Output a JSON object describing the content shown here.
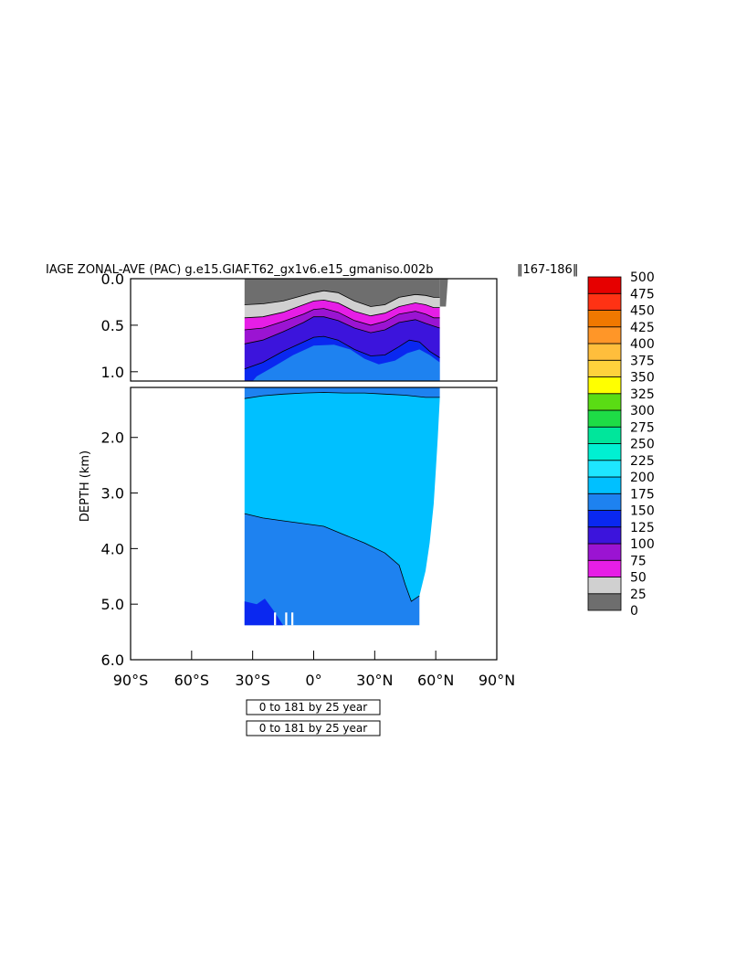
{
  "chart_data": {
    "type": "heatmap",
    "title": "IAGE ZONAL-AVE (PAC) g.e15.GIAF.T62_gx1v6.e15_gmaniso.002b",
    "title_years": "‖167-186‖",
    "ylabel": "DEPTH (km)",
    "xlabel": "",
    "x_ticks": [
      "90°S",
      "60°S",
      "30°S",
      "0°",
      "30°N",
      "60°N",
      "90°N"
    ],
    "x_tick_values": [
      -90,
      -60,
      -30,
      0,
      30,
      60,
      90
    ],
    "xlim": [
      -90,
      90
    ],
    "upper_panel": {
      "ylim": [
        0,
        1.1
      ],
      "y_ticks": [
        "0.0",
        "0.5",
        "1.0"
      ],
      "y_tick_values": [
        0,
        0.5,
        1.0
      ]
    },
    "lower_panel": {
      "ylim": [
        1.1,
        6.0
      ],
      "y_ticks": [
        "2.0",
        "3.0",
        "4.0",
        "5.0",
        "6.0"
      ],
      "y_tick_values": [
        2,
        3,
        4,
        5,
        6
      ]
    },
    "colorbar": {
      "levels": [
        0,
        25,
        50,
        75,
        100,
        125,
        150,
        175,
        200,
        225,
        250,
        275,
        300,
        325,
        350,
        375,
        400,
        425,
        450,
        475,
        500
      ],
      "labels": [
        "0",
        "25",
        "50",
        "75",
        "100",
        "125",
        "150",
        "175",
        "200",
        "225",
        "250",
        "275",
        "300",
        "325",
        "350",
        "375",
        "400",
        "425",
        "450",
        "475",
        "500"
      ],
      "colors": [
        "#6e6e6e",
        "#d0d0d0",
        "#e61ee6",
        "#9b14d2",
        "#3c14dc",
        "#0a28f0",
        "#1e82f0",
        "#00c0ff",
        "#1ee6ff",
        "#00f0d2",
        "#00e69b",
        "#1edc46",
        "#5adc14",
        "#ffff00",
        "#ffd23c",
        "#ffbe3c",
        "#ff9628",
        "#f07800",
        "#ff3214",
        "#e60000"
      ]
    },
    "contours": [
      {
        "level": 25,
        "points": [
          [
            -34,
            0.28
          ],
          [
            -25,
            0.27
          ],
          [
            -15,
            0.24
          ],
          [
            -5,
            0.18
          ],
          [
            0,
            0.15
          ],
          [
            5,
            0.13
          ],
          [
            12,
            0.15
          ],
          [
            20,
            0.24
          ],
          [
            28,
            0.3
          ],
          [
            35,
            0.28
          ],
          [
            42,
            0.2
          ],
          [
            50,
            0.17
          ],
          [
            55,
            0.18
          ],
          [
            59,
            0.2
          ],
          [
            62,
            0.2
          ]
        ]
      },
      {
        "level": 50,
        "points": [
          [
            -34,
            0.42
          ],
          [
            -25,
            0.41
          ],
          [
            -15,
            0.36
          ],
          [
            -5,
            0.28
          ],
          [
            0,
            0.24
          ],
          [
            5,
            0.23
          ],
          [
            12,
            0.26
          ],
          [
            20,
            0.35
          ],
          [
            28,
            0.4
          ],
          [
            35,
            0.37
          ],
          [
            42,
            0.3
          ],
          [
            50,
            0.26
          ],
          [
            55,
            0.28
          ],
          [
            59,
            0.31
          ],
          [
            62,
            0.31
          ]
        ]
      },
      {
        "level": 75,
        "points": [
          [
            -34,
            0.55
          ],
          [
            -25,
            0.53
          ],
          [
            -15,
            0.46
          ],
          [
            -5,
            0.38
          ],
          [
            0,
            0.33
          ],
          [
            5,
            0.32
          ],
          [
            12,
            0.36
          ],
          [
            20,
            0.45
          ],
          [
            28,
            0.5
          ],
          [
            35,
            0.46
          ],
          [
            42,
            0.38
          ],
          [
            50,
            0.35
          ],
          [
            55,
            0.38
          ],
          [
            59,
            0.42
          ],
          [
            62,
            0.42
          ]
        ]
      },
      {
        "level": 100,
        "points": [
          [
            -34,
            0.7
          ],
          [
            -25,
            0.66
          ],
          [
            -15,
            0.57
          ],
          [
            -5,
            0.47
          ],
          [
            0,
            0.41
          ],
          [
            5,
            0.41
          ],
          [
            12,
            0.45
          ],
          [
            20,
            0.53
          ],
          [
            28,
            0.58
          ],
          [
            35,
            0.55
          ],
          [
            42,
            0.47
          ],
          [
            50,
            0.44
          ],
          [
            55,
            0.48
          ],
          [
            59,
            0.51
          ],
          [
            62,
            0.53
          ]
        ]
      },
      {
        "level": 125,
        "points": [
          [
            -34,
            0.97
          ],
          [
            -25,
            0.9
          ],
          [
            -15,
            0.78
          ],
          [
            -5,
            0.68
          ],
          [
            0,
            0.63
          ],
          [
            5,
            0.62
          ],
          [
            12,
            0.66
          ],
          [
            20,
            0.76
          ],
          [
            28,
            0.83
          ],
          [
            35,
            0.82
          ],
          [
            42,
            0.73
          ],
          [
            47,
            0.66
          ],
          [
            52,
            0.68
          ],
          [
            57,
            0.78
          ],
          [
            62,
            0.85
          ]
        ]
      },
      {
        "level": 150,
        "points": [
          [
            -34,
            1.3
          ],
          [
            -25,
            1.25
          ],
          [
            -15,
            1.22
          ],
          [
            -5,
            1.2
          ],
          [
            5,
            1.19
          ],
          [
            15,
            1.2
          ],
          [
            25,
            1.2
          ],
          [
            35,
            1.22
          ],
          [
            45,
            1.24
          ],
          [
            55,
            1.28
          ],
          [
            60,
            1.28
          ],
          [
            62,
            1.28
          ]
        ]
      },
      {
        "level": 175,
        "points": [
          [
            -34,
            3.37
          ],
          [
            -25,
            3.45
          ],
          [
            -15,
            3.5
          ],
          [
            -5,
            3.55
          ],
          [
            5,
            3.6
          ],
          [
            15,
            3.75
          ],
          [
            25,
            3.9
          ],
          [
            35,
            4.08
          ],
          [
            42,
            4.3
          ],
          [
            45,
            4.65
          ],
          [
            48,
            4.95
          ],
          [
            52,
            4.85
          ]
        ]
      }
    ]
  }
}
